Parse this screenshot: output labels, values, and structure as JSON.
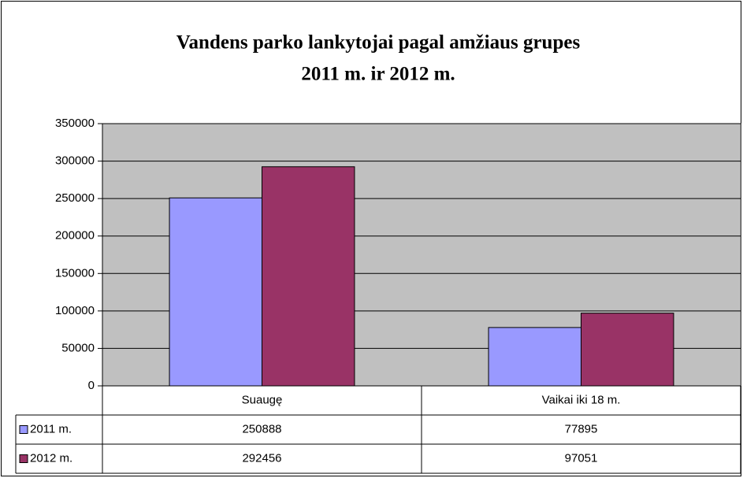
{
  "chart_data": {
    "type": "bar",
    "title": [
      "Vandens parko lankytojai pagal amžiaus grupes",
      "2011 m. ir  2012 m."
    ],
    "categories": [
      "Suaugę",
      "Vaikai iki 18 m."
    ],
    "series": [
      {
        "name": "2011 m.",
        "color": "#9999ff",
        "values": [
          250888,
          77895
        ]
      },
      {
        "name": "2012 m.",
        "color": "#993366",
        "values": [
          292456,
          97051
        ]
      }
    ],
    "ylim": [
      0,
      350000
    ],
    "yticks": [
      0,
      50000,
      100000,
      150000,
      200000,
      250000,
      300000,
      350000
    ],
    "grid": true,
    "plot_background": "#c0c0c0"
  }
}
